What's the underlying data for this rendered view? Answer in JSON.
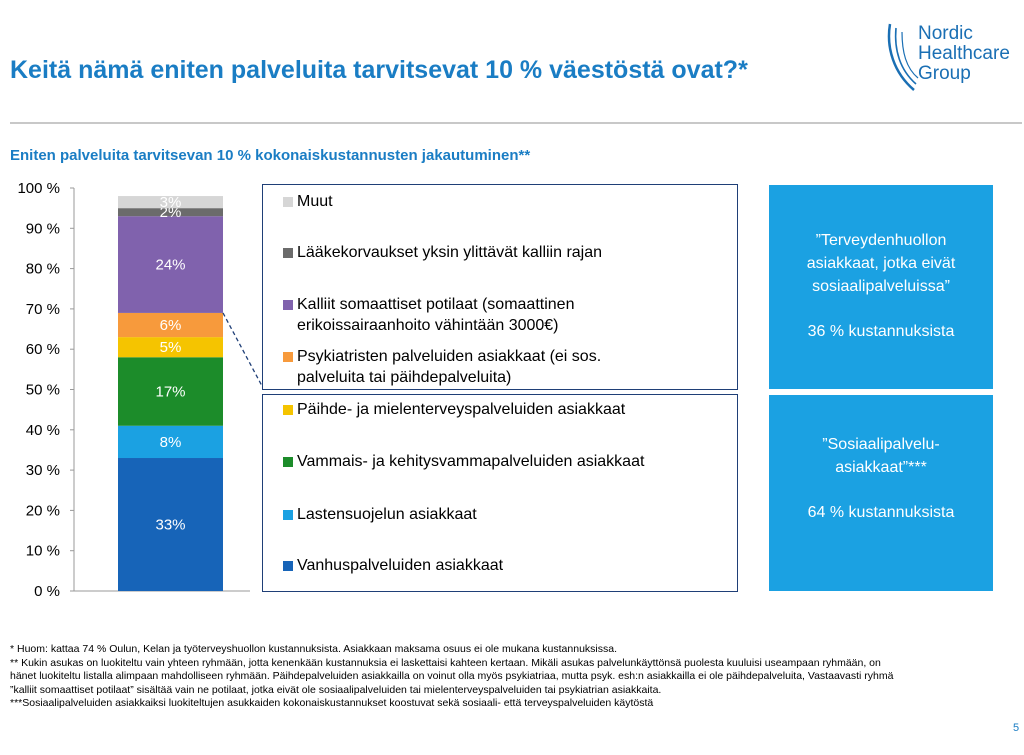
{
  "header": {
    "title": "Keitä nämä eniten palveluita tarvitsevat 10 %  väestöstä ovat?*",
    "logo_lines": [
      "Nordic",
      "Healthcare",
      "Group"
    ]
  },
  "subtitle": "Eniten palveluita tarvitsevan 10 % kokonaiskustannusten jakautuminen**",
  "chart_data": {
    "type": "bar",
    "stacked": true,
    "ylim": [
      0,
      100
    ],
    "y_ticks": [
      "0 %",
      "10 %",
      "20 %",
      "30 %",
      "40 %",
      "50 %",
      "60 %",
      "70 %",
      "80 %",
      "90 %",
      "100 %"
    ],
    "series": [
      {
        "name": "Vanhuspalveluiden asiakkaat",
        "value": 33,
        "label": "33%",
        "color": "#1764b8"
      },
      {
        "name": "Lastensuojelun asiakkaat",
        "value": 8,
        "label": "8%",
        "color": "#1ba1e2"
      },
      {
        "name": "Vammais- ja kehitysvammapalveluiden asiakkaat",
        "value": 17,
        "label": "17%",
        "color": "#1c8c2a"
      },
      {
        "name": "Päihde- ja mielenterveyspalveluiden asiakkaat",
        "value": 5,
        "label": "5%",
        "color": "#f5c400"
      },
      {
        "name": "Psykiatristen palveluiden asiakkaat (ei sos. palveluita tai päihdepalveluita)",
        "value": 6,
        "label": "6%",
        "color": "#f79a3c"
      },
      {
        "name": "Kalliit somaattiset potilaat (somaattinen erikoissairaanhoito vähintään 3000€)",
        "value": 24,
        "label": "24%",
        "color": "#8062ad"
      },
      {
        "name": "Lääkekorvaukset yksin ylittävät kalliin rajan",
        "value": 2,
        "label": "2%",
        "color": "#6b6b6b"
      },
      {
        "name": "Muut",
        "value": 3,
        "label": "3%",
        "color": "#d6d6d6"
      }
    ]
  },
  "legend_top": [
    {
      "label": "Muut",
      "color": "#d6d6d6"
    },
    {
      "label": "Lääkekorvaukset yksin ylittävät kalliin rajan",
      "color": "#6b6b6b"
    },
    {
      "label": "Kalliit somaattiset potilaat (somaattinen erikoissairaanhoito vähintään 3000€)",
      "color": "#8062ad"
    },
    {
      "label": "Psykiatristen palveluiden asiakkaat (ei sos. palveluita tai päihdepalveluita)",
      "color": "#f79a3c"
    }
  ],
  "legend_bottom": [
    {
      "label": "Päihde- ja mielenterveyspalveluiden asiakkaat",
      "color": "#f5c400"
    },
    {
      "label": "Vammais- ja kehitysvammapalveluiden asiakkaat",
      "color": "#1c8c2a"
    },
    {
      "label": "Lastensuojelun asiakkaat",
      "color": "#1ba1e2"
    },
    {
      "label": "Vanhuspalveluiden asiakkaat",
      "color": "#1764b8"
    }
  ],
  "info_boxes": [
    {
      "quote": "”Terveydenhuollon asiakkaat, jotka eivät sosiaalipalveluissa”",
      "pct": "36 % kustannuksista"
    },
    {
      "quote": "”Sosiaalipalvelu-asiakkaat”***",
      "pct": "64 % kustannuksista"
    }
  ],
  "footnotes": [
    "* Huom: kattaa 74 % Oulun, Kelan ja työterveyshuollon kustannuksista. Asiakkaan maksama osuus ei ole mukana kustannuksissa.",
    "** Kukin asukas on luokiteltu vain yhteen ryhmään, jotta kenenkään kustannuksia ei laskettaisi kahteen kertaan. Mikäli asukas palvelunkäyttönsä puolesta kuuluisi useampaan ryhmään, on hänet luokiteltu listalla alimpaan mahdolliseen ryhmään. Päihdepalveluiden asiakkailla on voinut olla myös psykiatriaa, mutta psyk. esh:n asiakkailla ei ole päihdepalveluita, Vastaavasti ryhmä ”kalliit somaattiset potilaat” sisältää vain ne potilaat, jotka eivät ole sosiaalipalveluiden tai mielenterveyspalveluiden tai psykiatrian asiakkaita.",
    "***Sosiaalipalveluiden asiakkaiksi luokiteltujen asukkaiden kokonaiskustannukset koostuvat sekä sosiaali- että terveyspalveluiden käytöstä"
  ],
  "page_number": "5"
}
